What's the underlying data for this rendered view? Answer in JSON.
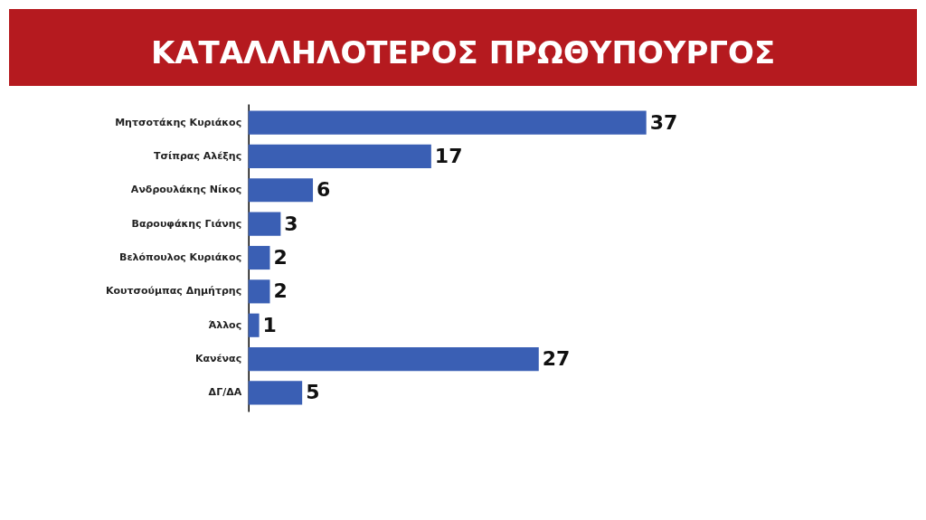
{
  "chart_data": {
    "type": "bar",
    "orientation": "horizontal",
    "title": "ΚΑΤΑΛΛΗΛΟΤΕΡΟΣ ΠΡΩΘΥΠΟΥΡΓΟΣ",
    "categories": [
      "Μητσοτάκης Κυριάκος",
      "Τσίπρας Αλέξης",
      "Ανδρουλάκης Νίκος",
      "Βαρουφάκης Γιάνης",
      "Βελόπουλος Κυριάκος",
      "Κουτσούμπας Δημήτρης",
      "Άλλος",
      "Κανένας",
      "ΔΓ/ΔΑ"
    ],
    "values": [
      37,
      17,
      6,
      3,
      2,
      2,
      1,
      27,
      5
    ],
    "color": "#3a5fb4",
    "data_labels": true
  }
}
